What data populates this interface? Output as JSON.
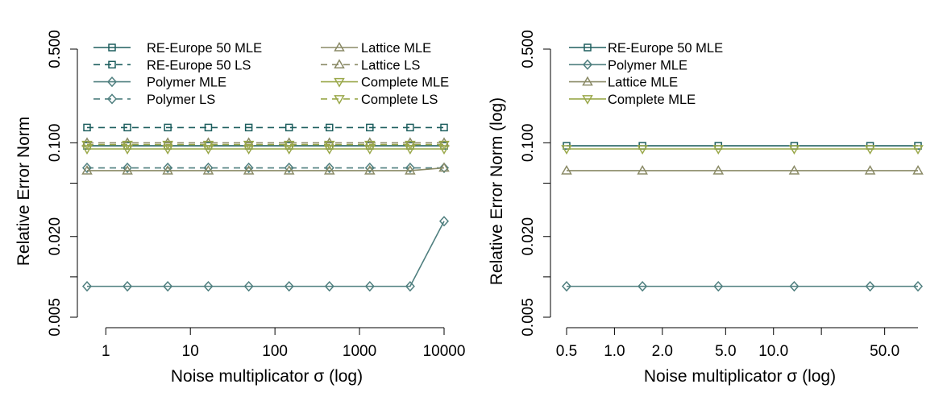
{
  "chart_data": [
    {
      "type": "line",
      "xlabel": "Noise multiplicator σ (log)",
      "ylabel": "Relative Error Norm",
      "xscale": "log",
      "yscale": "log",
      "xlim": [
        0.6,
        10000
      ],
      "ylim": [
        0.005,
        0.5
      ],
      "xticks": [
        1,
        10,
        100,
        1000,
        10000
      ],
      "xtick_labels": [
        "1",
        "10",
        "100",
        "1000",
        "10000"
      ],
      "yticks": [
        0.005,
        0.02,
        0.1,
        0.5
      ],
      "ytick_labels": [
        "0.005",
        "0.020",
        "0.100",
        "0.500"
      ],
      "yticks_unlabeled": [
        0.01,
        0.05
      ],
      "legend_position": "top",
      "x": [
        0.6,
        1.8,
        5.4,
        16.3,
        49,
        147,
        441,
        1323,
        3969,
        10000
      ],
      "series": [
        {
          "name": "RE-Europe 50 MLE",
          "color": "#1e5f5f",
          "marker": "square",
          "dash": "solid",
          "values": [
            0.095,
            0.095,
            0.095,
            0.095,
            0.095,
            0.095,
            0.095,
            0.095,
            0.095,
            0.095
          ]
        },
        {
          "name": "RE-Europe 50 LS",
          "color": "#1e5f5f",
          "marker": "square",
          "dash": "dashed",
          "values": [
            0.13,
            0.13,
            0.13,
            0.13,
            0.13,
            0.13,
            0.13,
            0.13,
            0.13,
            0.13
          ]
        },
        {
          "name": "Polymer MLE",
          "color": "#4f7f7f",
          "marker": "diamond",
          "dash": "solid",
          "values": [
            0.0085,
            0.0085,
            0.0085,
            0.0085,
            0.0085,
            0.0085,
            0.0085,
            0.0085,
            0.0085,
            0.026
          ]
        },
        {
          "name": "Polymer LS",
          "color": "#4f7f7f",
          "marker": "diamond",
          "dash": "dashed",
          "values": [
            0.065,
            0.065,
            0.065,
            0.065,
            0.065,
            0.065,
            0.065,
            0.065,
            0.065,
            0.065
          ]
        },
        {
          "name": "Lattice MLE",
          "color": "#8a8a66",
          "marker": "triangle-up",
          "dash": "solid",
          "values": [
            0.062,
            0.062,
            0.062,
            0.062,
            0.062,
            0.062,
            0.062,
            0.062,
            0.062,
            0.065
          ]
        },
        {
          "name": "Lattice LS",
          "color": "#8a8a66",
          "marker": "triangle-up",
          "dash": "dashed",
          "values": [
            0.1,
            0.1,
            0.1,
            0.1,
            0.1,
            0.1,
            0.1,
            0.1,
            0.1,
            0.1
          ]
        },
        {
          "name": "Complete MLE",
          "color": "#9aa84a",
          "marker": "triangle-down",
          "dash": "solid",
          "values": [
            0.09,
            0.09,
            0.09,
            0.09,
            0.09,
            0.09,
            0.09,
            0.09,
            0.09,
            0.09
          ]
        },
        {
          "name": "Complete LS",
          "color": "#9aa84a",
          "marker": "triangle-down",
          "dash": "dashed",
          "values": [
            0.097,
            0.097,
            0.097,
            0.097,
            0.097,
            0.097,
            0.097,
            0.097,
            0.097,
            0.097
          ]
        }
      ]
    },
    {
      "type": "line",
      "xlabel": "Noise multiplicator σ (log)",
      "ylabel": "Relative Error Norm (log)",
      "xscale": "log",
      "yscale": "log",
      "xlim": [
        0.5,
        81
      ],
      "ylim": [
        0.005,
        0.5
      ],
      "xticks": [
        0.5,
        1,
        2,
        5,
        10,
        50
      ],
      "xtick_labels": [
        "0.5",
        "1.0",
        "2.0",
        "5.0",
        "10.0",
        "50.0"
      ],
      "xticks_unlabeled": [
        20
      ],
      "yticks": [
        0.005,
        0.02,
        0.1,
        0.5
      ],
      "ytick_labels": [
        "0.005",
        "0.020",
        "0.100",
        "0.500"
      ],
      "yticks_unlabeled": [
        0.01,
        0.05
      ],
      "legend_position": "top-left",
      "x": [
        0.5,
        1.5,
        4.5,
        13.5,
        40.5,
        81
      ],
      "series": [
        {
          "name": "RE-Europe 50 MLE",
          "color": "#1e5f5f",
          "marker": "square",
          "dash": "solid",
          "values": [
            0.095,
            0.095,
            0.095,
            0.095,
            0.095,
            0.095
          ]
        },
        {
          "name": "Polymer MLE",
          "color": "#4f7f7f",
          "marker": "diamond",
          "dash": "solid",
          "values": [
            0.0085,
            0.0085,
            0.0085,
            0.0085,
            0.0085,
            0.0085
          ]
        },
        {
          "name": "Lattice MLE",
          "color": "#8a8a66",
          "marker": "triangle-up",
          "dash": "solid",
          "values": [
            0.062,
            0.062,
            0.062,
            0.062,
            0.062,
            0.062
          ]
        },
        {
          "name": "Complete MLE",
          "color": "#9aa84a",
          "marker": "triangle-down",
          "dash": "solid",
          "values": [
            0.09,
            0.09,
            0.09,
            0.09,
            0.09,
            0.09
          ]
        }
      ]
    }
  ]
}
